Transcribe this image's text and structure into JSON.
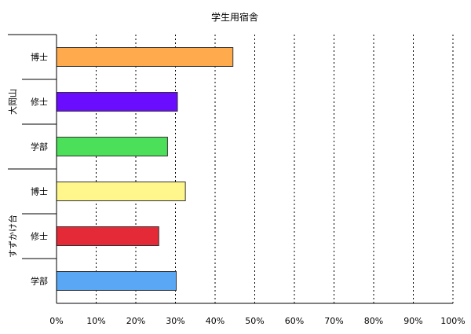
{
  "chart_data": {
    "type": "bar",
    "orientation": "horizontal",
    "title": "学生用宿舎",
    "groups": [
      {
        "name": "大岡山",
        "bars": [
          {
            "label": "博士",
            "value": 44.5,
            "color": "#FFAA4C"
          },
          {
            "label": "修士",
            "value": 30.5,
            "color": "#6A0DFF"
          },
          {
            "label": "学部",
            "value": 28.0,
            "color": "#4CE05A"
          }
        ]
      },
      {
        "name": "すずかけ台",
        "bars": [
          {
            "label": "博士",
            "value": 32.5,
            "color": "#FFF78C"
          },
          {
            "label": "修士",
            "value": 25.8,
            "color": "#E32A36"
          },
          {
            "label": "学部",
            "value": 30.2,
            "color": "#5AA8F5"
          }
        ]
      }
    ],
    "xlim": [
      0,
      100
    ],
    "xticks": [
      "0%",
      "10%",
      "20%",
      "30%",
      "40%",
      "50%",
      "60%",
      "70%",
      "80%",
      "90%",
      "100%"
    ],
    "grid": true,
    "legend": "none"
  }
}
